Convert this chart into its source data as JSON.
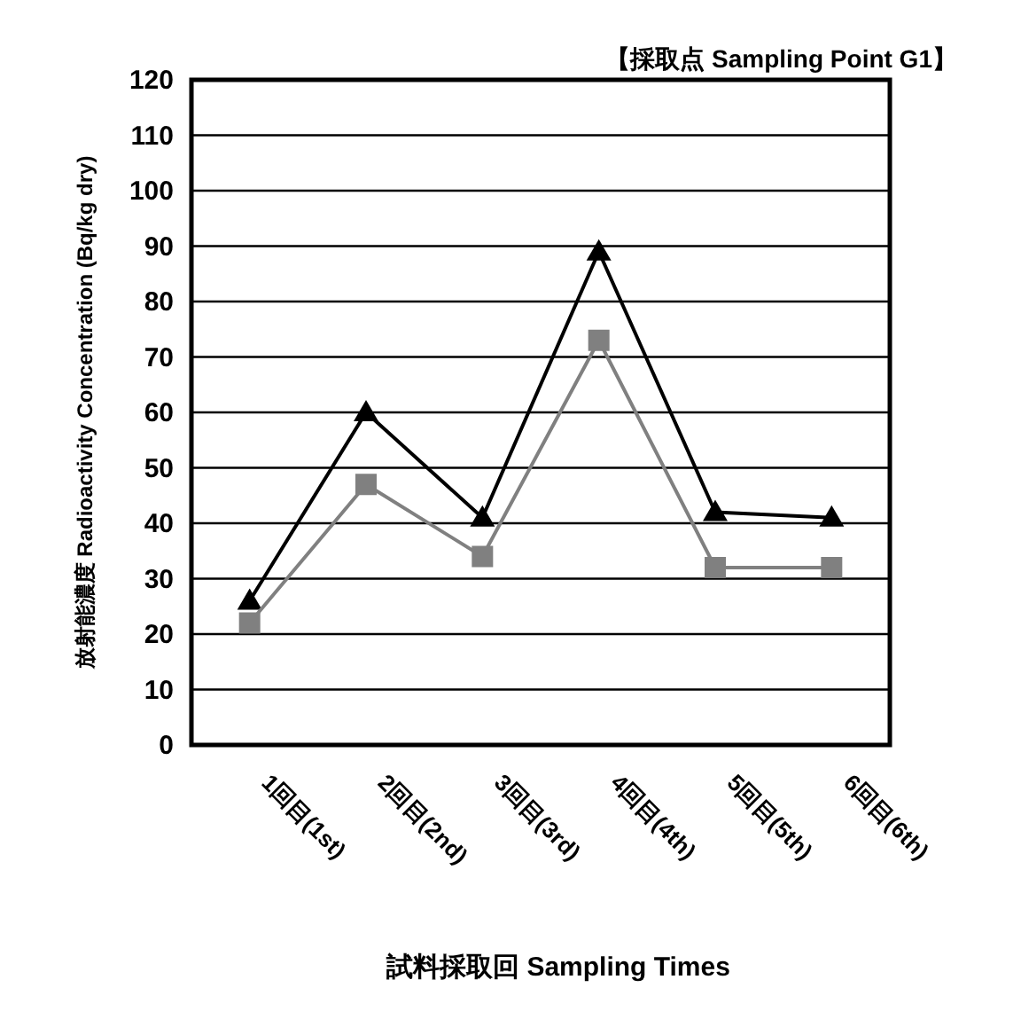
{
  "chart_data": {
    "type": "line",
    "title": "【採取点 Sampling Point  G1】",
    "xlabel": "試料採取回 Sampling Times",
    "ylabel": "放射能濃度  Radioactivity Concentration (Bq/kg dry)",
    "categories": [
      "1回目(1st)",
      "2回目(2nd)",
      "3回目(3rd)",
      "4回目(4th)",
      "5回目(5th)",
      "6回目(6th)"
    ],
    "series": [
      {
        "color": "#000000",
        "marker": "triangle",
        "values": [
          26,
          60,
          41,
          89,
          42,
          41
        ]
      },
      {
        "color": "#808080",
        "marker": "square",
        "values": [
          22,
          47,
          34,
          73,
          32,
          32
        ]
      }
    ],
    "ylim": [
      0,
      120
    ],
    "yticks": [
      0,
      10,
      20,
      30,
      40,
      50,
      60,
      70,
      80,
      90,
      100,
      110,
      120
    ],
    "grid": "y"
  }
}
